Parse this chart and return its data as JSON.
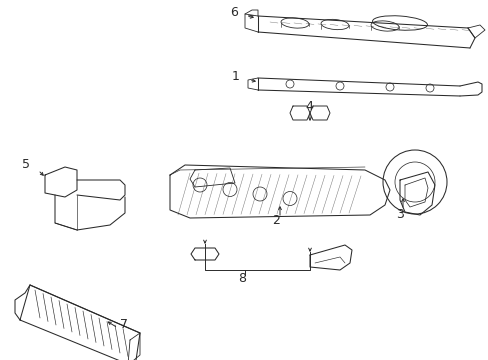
{
  "background_color": "#ffffff",
  "line_color": "#2a2a2a",
  "figsize": [
    4.89,
    3.6
  ],
  "dpi": 100,
  "lw": 0.75
}
